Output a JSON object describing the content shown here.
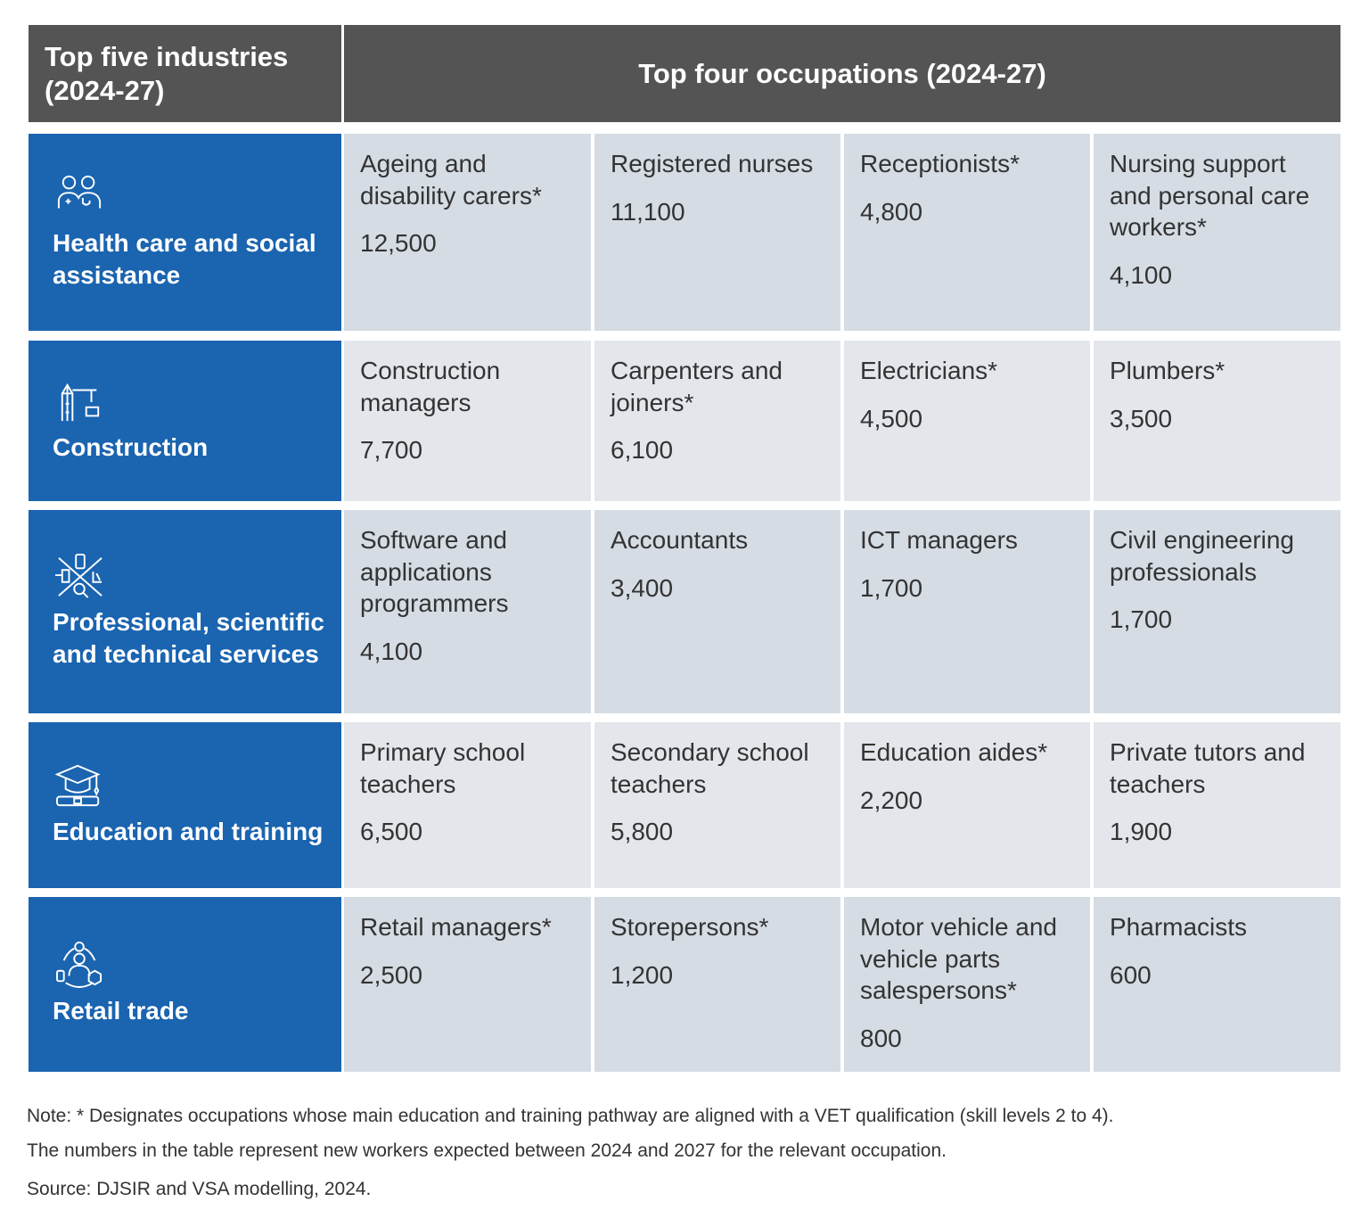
{
  "header": {
    "industries": "Top five industries (2024-27)",
    "occupations": "Top four occupations (2024-27)"
  },
  "rows": [
    {
      "industry": "Health care and social assistance",
      "icon": "health-workers-icon",
      "occupations": [
        {
          "name": "Ageing and disability carers*",
          "value": "12,500"
        },
        {
          "name": "Registered nurses",
          "value": "11,100"
        },
        {
          "name": "Receptionists*",
          "value": "4,800"
        },
        {
          "name": "Nursing support and personal care workers*",
          "value": "4,100"
        }
      ]
    },
    {
      "industry": "Construction",
      "icon": "construction-crane-icon",
      "occupations": [
        {
          "name": "Construction managers",
          "value": "7,700"
        },
        {
          "name": "Carpenters and joiners*",
          "value": "6,100"
        },
        {
          "name": "Electricians*",
          "value": "4,500"
        },
        {
          "name": "Plumbers*",
          "value": "3,500"
        }
      ]
    },
    {
      "industry": "Professional, scientific and technical services",
      "icon": "science-tools-icon",
      "occupations": [
        {
          "name": "Software and applications programmers",
          "value": "4,100"
        },
        {
          "name": "Accountants",
          "value": "3,400"
        },
        {
          "name": "ICT managers",
          "value": "1,700"
        },
        {
          "name": "Civil engineering professionals",
          "value": "1,700"
        }
      ]
    },
    {
      "industry": "Education and training",
      "icon": "graduation-cap-icon",
      "occupations": [
        {
          "name": "Primary school teachers",
          "value": "6,500"
        },
        {
          "name": "Secondary school teachers",
          "value": "5,800"
        },
        {
          "name": "Education aides*",
          "value": "2,200"
        },
        {
          "name": "Private tutors and teachers",
          "value": "1,900"
        }
      ]
    },
    {
      "industry": "Retail trade",
      "icon": "retail-cycle-icon",
      "occupations": [
        {
          "name": "Retail managers*",
          "value": "2,500"
        },
        {
          "name": "Storepersons*",
          "value": "1,200"
        },
        {
          "name": "Motor vehicle and vehicle parts salespersons*",
          "value": "800"
        },
        {
          "name": "Pharmacists",
          "value": "600"
        }
      ]
    }
  ],
  "notes": {
    "note1": "Note: * Designates occupations whose main education and training pathway are aligned with a VET qualification (skill levels 2 to 4).",
    "note2": "The numbers in the table represent new workers expected between 2024 and 2027 for the relevant occupation.",
    "source": "Source: DJSIR and VSA modelling, 2024."
  },
  "colors": {
    "header": "#545454",
    "industry": "#1a64b0",
    "cell_dark": "#d5dce4",
    "cell_light": "#e3e6eb"
  }
}
